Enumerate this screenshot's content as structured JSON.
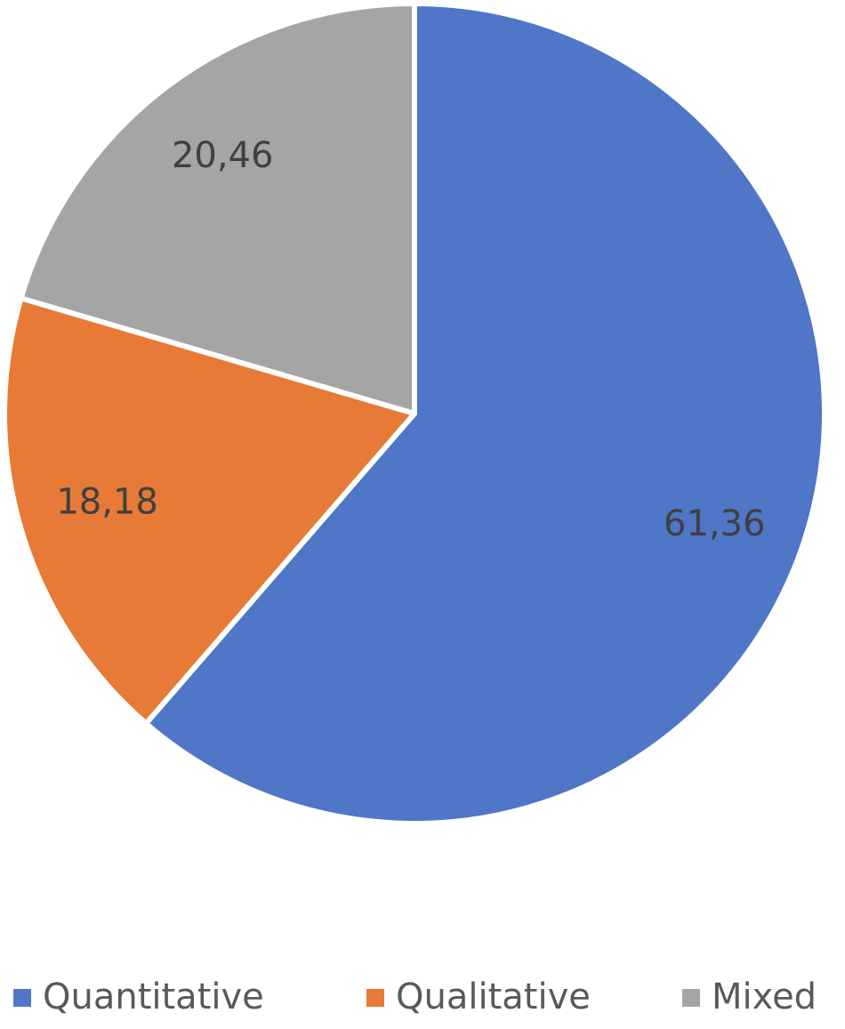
{
  "chart_data": {
    "type": "pie",
    "categories": [
      "Quantitative",
      "Qualitative",
      "Mixed"
    ],
    "values": [
      61.36,
      18.18,
      20.46
    ],
    "value_labels": [
      "61,36",
      "18,18",
      "20,46"
    ],
    "colors": [
      "#4f76c7",
      "#e67a36",
      "#a5a5a5"
    ],
    "legend": "bottom"
  }
}
